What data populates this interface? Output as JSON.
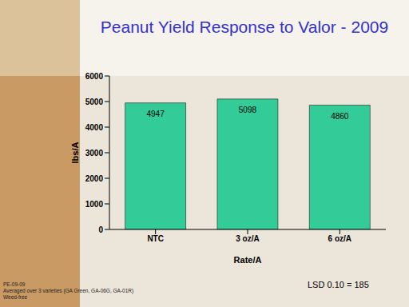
{
  "chart_data": {
    "type": "bar",
    "title": "Peanut Yield Response to Valor - 2009",
    "x_label": "Rate/A",
    "y_label": "lbs/A",
    "categories": [
      "NTC",
      "3 oz/A",
      "6 oz/A"
    ],
    "values": [
      4947,
      5098,
      4860
    ],
    "color": "#33cc99",
    "ylim": [
      0,
      6000
    ],
    "yticks": [
      0,
      1000,
      2000,
      3000,
      4000,
      5000,
      6000
    ],
    "grid": false,
    "data_labels": true,
    "annotations": [
      "PE-09-09",
      "Averaged over 3 varieties (GA Green, GA-06G, GA-01R)",
      "Weed-free",
      "LSD 0.10 = 185"
    ]
  }
}
